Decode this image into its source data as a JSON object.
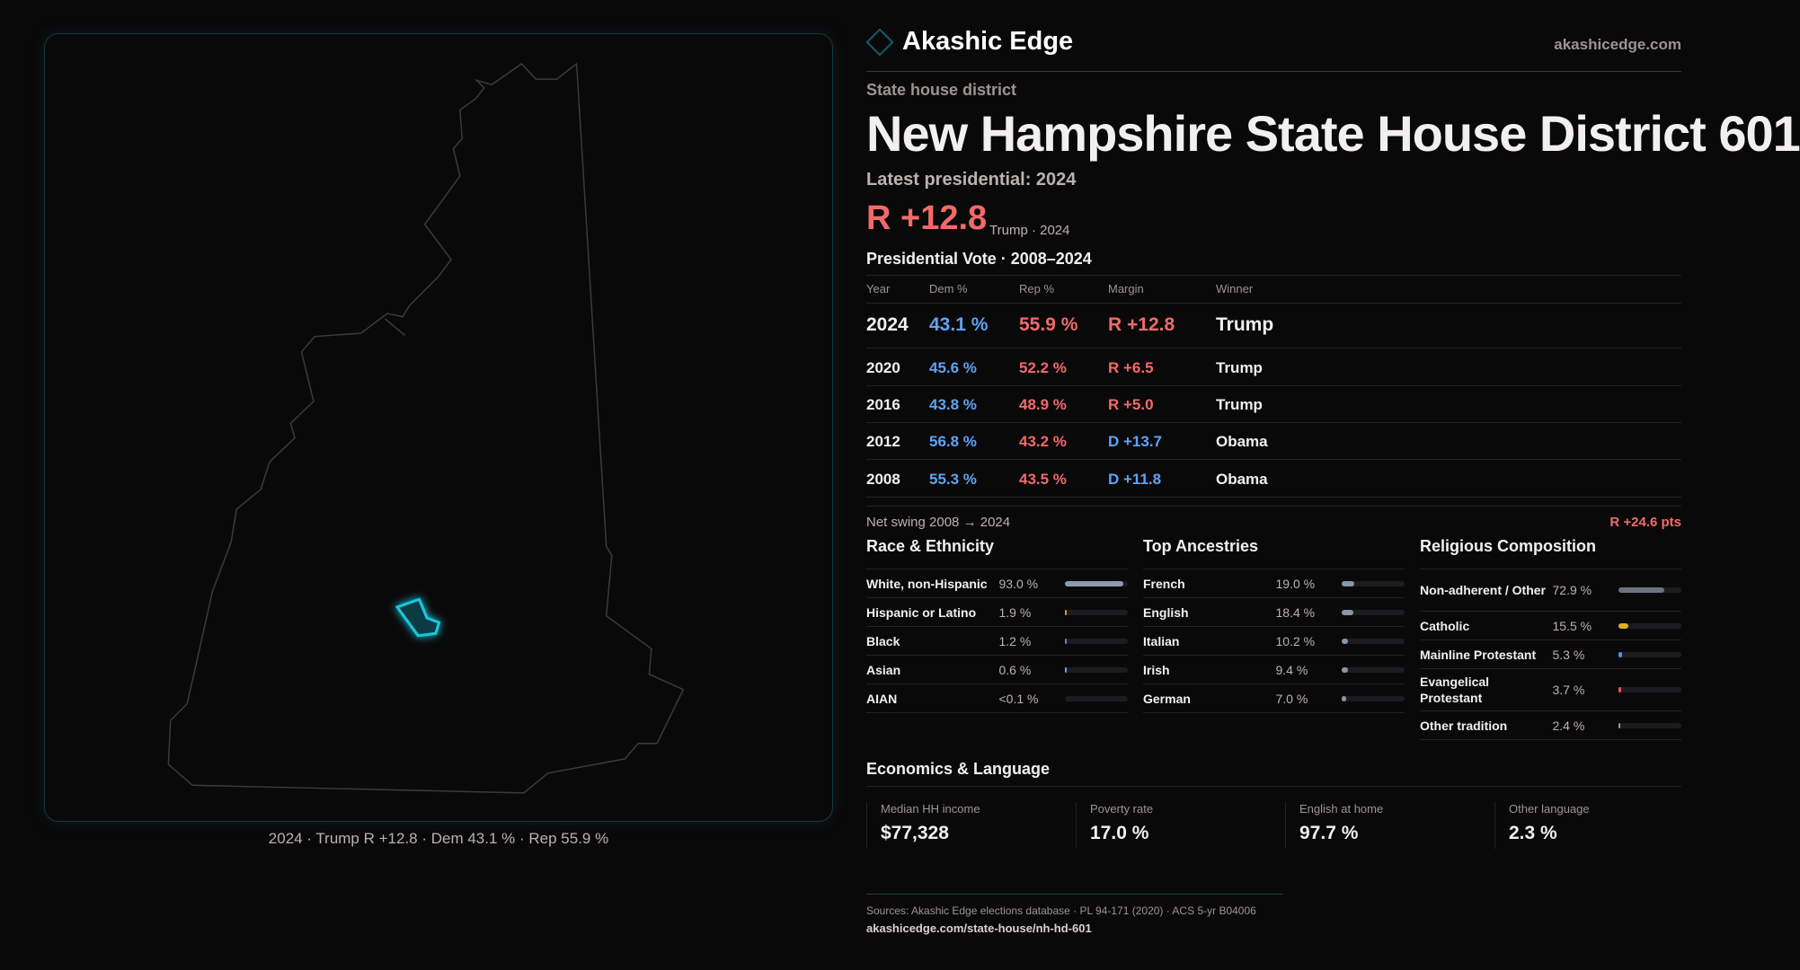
{
  "brand": "Akashic Edge",
  "site": "akashicedge.com",
  "kind": "State house district",
  "title": "New Hampshire State House District 601",
  "latest_label": "Latest presidential: 2024",
  "headline_margin": "R +12.8",
  "headline_sub": "Trump · 2024",
  "table_title": "Presidential Vote · 2008–2024",
  "columns": [
    "Year",
    "Dem %",
    "Rep %",
    "Margin",
    "Winner"
  ],
  "rows": [
    {
      "year": "2024",
      "dem": "43.1 %",
      "rep": "55.9 %",
      "margin": "R +12.8",
      "winner": "Trump",
      "party": "R"
    },
    {
      "year": "2020",
      "dem": "45.6 %",
      "rep": "52.2 %",
      "margin": "R +6.5",
      "winner": "Trump",
      "party": "R"
    },
    {
      "year": "2016",
      "dem": "43.8 %",
      "rep": "48.9 %",
      "margin": "R +5.0",
      "winner": "Trump",
      "party": "R"
    },
    {
      "year": "2012",
      "dem": "56.8 %",
      "rep": "43.2 %",
      "margin": "D +13.7",
      "winner": "Obama",
      "party": "D"
    },
    {
      "year": "2008",
      "dem": "55.3 %",
      "rep": "43.5 %",
      "margin": "D +11.8",
      "winner": "Obama",
      "party": "D"
    }
  ],
  "swing": {
    "label": "Net swing 2008 → 2024",
    "value": "R +24.6 pts"
  },
  "sections": [
    {
      "title": "Race & Ethnicity",
      "items": [
        {
          "label": "White, non-Hispanic",
          "value": "93.0 %",
          "pct": 93.0,
          "color": "#8d9bb0"
        },
        {
          "label": "Hispanic or Latino",
          "value": "1.9 %",
          "pct": 1.9,
          "color": "#d89a2a"
        },
        {
          "label": "Black",
          "value": "1.2 %",
          "pct": 1.2,
          "color": "#7b6fd0"
        },
        {
          "label": "Asian",
          "value": "0.6 %",
          "pct": 0.6,
          "color": "#5fa3f5"
        },
        {
          "label": "AIAN",
          "value": "<0.1 %",
          "pct": 0.05,
          "color": "#8d9bb0"
        }
      ]
    },
    {
      "title": "Top Ancestries",
      "items": [
        {
          "label": "French",
          "value": "19.0 %",
          "pct": 19.0,
          "color": "#8a95a8"
        },
        {
          "label": "English",
          "value": "18.4 %",
          "pct": 18.4,
          "color": "#8a95a8"
        },
        {
          "label": "Italian",
          "value": "10.2 %",
          "pct": 10.2,
          "color": "#8a95a8"
        },
        {
          "label": "Irish",
          "value": "9.4 %",
          "pct": 9.4,
          "color": "#8a95a8"
        },
        {
          "label": "German",
          "value": "7.0 %",
          "pct": 7.0,
          "color": "#8a95a8"
        }
      ]
    },
    {
      "title": "Religious Composition",
      "items": [
        {
          "label": "Non-adherent / Other",
          "value": "72.9 %",
          "pct": 72.9,
          "color": "#6b7280"
        },
        {
          "label": "Catholic",
          "value": "15.5 %",
          "pct": 15.5,
          "color": "#e0b020"
        },
        {
          "label": "Mainline Protestant",
          "value": "5.3 %",
          "pct": 5.3,
          "color": "#4f8fe0"
        },
        {
          "label": "Evangelical Protestant",
          "value": "3.7 %",
          "pct": 3.7,
          "color": "#e05555"
        },
        {
          "label": "Other tradition",
          "value": "2.4 %",
          "pct": 2.4,
          "color": "#8a95a8"
        }
      ]
    }
  ],
  "economics": {
    "title": "Economics & Language",
    "cards": [
      {
        "label": "Median HH income",
        "value": "$77,328"
      },
      {
        "label": "Poverty rate",
        "value": "17.0 %"
      },
      {
        "label": "English at home",
        "value": "97.7 %"
      },
      {
        "label": "Other language",
        "value": "2.3 %"
      }
    ]
  },
  "sources": "Sources: Akashic Edge elections database · PL 94-171 (2020) · ACS 5-yr B04006",
  "url": "akashicedge.com/state-house/nh-hd-601",
  "map_caption": "2024 · Trump R +12.8 · Dem 43.1 % · Rep 55.9 %",
  "colors": {
    "dem": "#5fa3f5",
    "rep": "#f16a6a",
    "district": "#19c6dc",
    "accent": "#0f5e66"
  }
}
